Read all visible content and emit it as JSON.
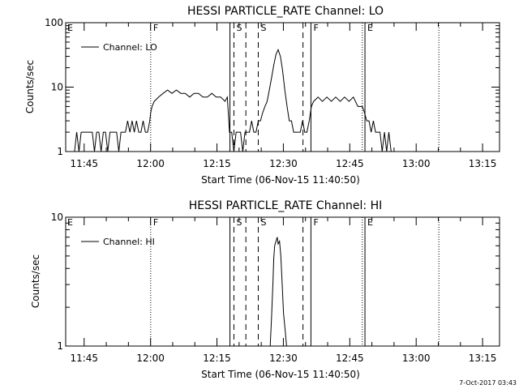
{
  "footer": {
    "timestamp": "7-Oct-2017 03:43"
  },
  "chart_data": [
    {
      "type": "line",
      "title": "HESSI PARTICLE_RATE Channel: LO",
      "xlabel": "Start Time (06-Nov-15 11:40:50)",
      "ylabel": "Counts/sec",
      "x_unit": "minutes after 11:40:50",
      "xlim": [
        0,
        98
      ],
      "ylim": [
        1,
        100
      ],
      "yscale": "log",
      "grid": false,
      "legend_position": "top-left",
      "x_ticks": [
        {
          "x": 4.17,
          "label": "11:45"
        },
        {
          "x": 19.17,
          "label": "12:00"
        },
        {
          "x": 34.17,
          "label": "12:15"
        },
        {
          "x": 49.17,
          "label": "12:30"
        },
        {
          "x": 64.17,
          "label": "12:45"
        },
        {
          "x": 79.17,
          "label": "13:00"
        },
        {
          "x": 94.17,
          "label": "13:15"
        }
      ],
      "y_ticks": [
        {
          "y": 1,
          "label": "1"
        },
        {
          "y": 10,
          "label": "10"
        },
        {
          "y": 100,
          "label": "100"
        }
      ],
      "event_lines": [
        {
          "x": 19.2,
          "label": "F",
          "style": "dotted"
        },
        {
          "x": 37.1,
          "label": "",
          "style": "solid"
        },
        {
          "x": 38.0,
          "label": "S",
          "style": "dashed"
        },
        {
          "x": 40.7,
          "label": "",
          "style": "dashed"
        },
        {
          "x": 43.5,
          "label": "S",
          "style": "dashed"
        },
        {
          "x": 53.6,
          "label": "",
          "style": "dashed"
        },
        {
          "x": 55.4,
          "label": "F",
          "style": "solid"
        },
        {
          "x": 67.0,
          "label": "",
          "style": "dotted"
        },
        {
          "x": 67.6,
          "label": "E",
          "style": "solid"
        },
        {
          "x": 84.3,
          "label": "",
          "style": "dotted"
        }
      ],
      "edge_labels": [
        {
          "x": 0,
          "label": "E"
        }
      ],
      "series": [
        {
          "name": "Channel: LO",
          "x": [
            2.0,
            2.5,
            3.0,
            3.5,
            4.0,
            4.5,
            5.0,
            5.5,
            6.0,
            6.5,
            7.0,
            7.5,
            8.0,
            8.5,
            9.0,
            9.5,
            10.0,
            10.5,
            11.0,
            11.5,
            12.0,
            12.5,
            13.0,
            13.5,
            14.0,
            14.5,
            15.0,
            15.5,
            16.0,
            16.5,
            17.0,
            17.5,
            18.0,
            18.5,
            19.0,
            19.2,
            19.5,
            20.0,
            21.0,
            22.0,
            23.0,
            24.0,
            25.0,
            26.0,
            27.0,
            28.0,
            29.0,
            30.0,
            31.0,
            32.0,
            33.0,
            34.0,
            35.0,
            36.0,
            36.5,
            37.0,
            37.5,
            38.0,
            38.5,
            39.0,
            39.5,
            40.0,
            40.5,
            41.0,
            41.5,
            42.0,
            42.5,
            43.0,
            43.5,
            44.0,
            44.5,
            45.0,
            45.5,
            46.0,
            46.5,
            47.0,
            47.5,
            48.0,
            48.5,
            49.0,
            49.5,
            50.0,
            50.5,
            51.0,
            51.5,
            52.0,
            52.5,
            53.0,
            53.5,
            54.0,
            54.5,
            55.0,
            55.5,
            56.0,
            57.0,
            58.0,
            59.0,
            60.0,
            61.0,
            62.0,
            63.0,
            64.0,
            65.0,
            66.0,
            67.0,
            67.5,
            68.0,
            68.5,
            69.0,
            69.5,
            70.0,
            70.5,
            71.0,
            71.5,
            72.0,
            72.5,
            73.0,
            73.5,
            74.0,
            74.5,
            75.0
          ],
          "values": [
            1,
            2,
            1,
            2,
            2,
            2,
            2,
            2,
            2,
            1,
            2,
            2,
            1,
            2,
            2,
            1,
            2,
            2,
            2,
            2,
            1,
            2,
            2,
            2,
            3,
            2,
            3,
            2,
            3,
            2,
            2,
            3,
            2,
            2,
            3,
            4,
            5,
            6,
            7,
            8,
            9,
            8,
            9,
            8,
            8,
            7,
            8,
            8,
            7,
            7,
            8,
            7,
            7,
            6,
            7,
            2,
            2,
            1,
            2,
            2,
            2,
            1,
            2,
            2,
            2,
            3,
            2,
            2,
            3,
            3,
            4,
            5,
            6,
            9,
            14,
            22,
            32,
            38,
            30,
            18,
            9,
            5,
            3,
            3,
            2,
            2,
            2,
            2,
            3,
            2,
            2,
            3,
            5,
            6,
            7,
            6,
            7,
            6,
            7,
            6,
            7,
            6,
            7,
            5,
            5,
            4,
            3,
            3,
            2,
            3,
            2,
            2,
            2,
            1,
            2,
            1,
            2,
            1,
            1,
            1,
            1
          ]
        }
      ]
    },
    {
      "type": "line",
      "title": "HESSI PARTICLE_RATE Channel: HI",
      "xlabel": "Start Time (06-Nov-15 11:40:50)",
      "ylabel": "Counts/sec",
      "x_unit": "minutes after 11:40:50",
      "xlim": [
        0,
        98
      ],
      "ylim": [
        1,
        10
      ],
      "yscale": "log",
      "grid": false,
      "legend_position": "top-left",
      "x_ticks": [
        {
          "x": 4.17,
          "label": "11:45"
        },
        {
          "x": 19.17,
          "label": "12:00"
        },
        {
          "x": 34.17,
          "label": "12:15"
        },
        {
          "x": 49.17,
          "label": "12:30"
        },
        {
          "x": 64.17,
          "label": "12:45"
        },
        {
          "x": 79.17,
          "label": "13:00"
        },
        {
          "x": 94.17,
          "label": "13:15"
        }
      ],
      "y_ticks": [
        {
          "y": 1,
          "label": "1"
        },
        {
          "y": 10,
          "label": "10"
        }
      ],
      "event_lines": [
        {
          "x": 19.2,
          "label": "F",
          "style": "dotted"
        },
        {
          "x": 37.1,
          "label": "",
          "style": "solid"
        },
        {
          "x": 38.0,
          "label": "S",
          "style": "dashed"
        },
        {
          "x": 40.7,
          "label": "",
          "style": "dashed"
        },
        {
          "x": 43.5,
          "label": "S",
          "style": "dashed"
        },
        {
          "x": 53.6,
          "label": "",
          "style": "dashed"
        },
        {
          "x": 55.4,
          "label": "F",
          "style": "solid"
        },
        {
          "x": 67.0,
          "label": "",
          "style": "dotted"
        },
        {
          "x": 67.6,
          "label": "E",
          "style": "solid"
        },
        {
          "x": 84.3,
          "label": "",
          "style": "dotted"
        }
      ],
      "edge_labels": [
        {
          "x": 0,
          "label": "E"
        }
      ],
      "series": [
        {
          "name": "Channel: HI",
          "x": [
            46.2,
            46.5,
            46.8,
            47.0,
            47.2,
            47.5,
            47.8,
            48.0,
            48.3,
            48.6,
            48.9,
            49.2,
            49.6,
            49.9
          ],
          "values": [
            1,
            1.7,
            3,
            4.8,
            6,
            6.5,
            7,
            6.2,
            6.5,
            5,
            3,
            1.8,
            1.3,
            1
          ]
        }
      ]
    }
  ]
}
